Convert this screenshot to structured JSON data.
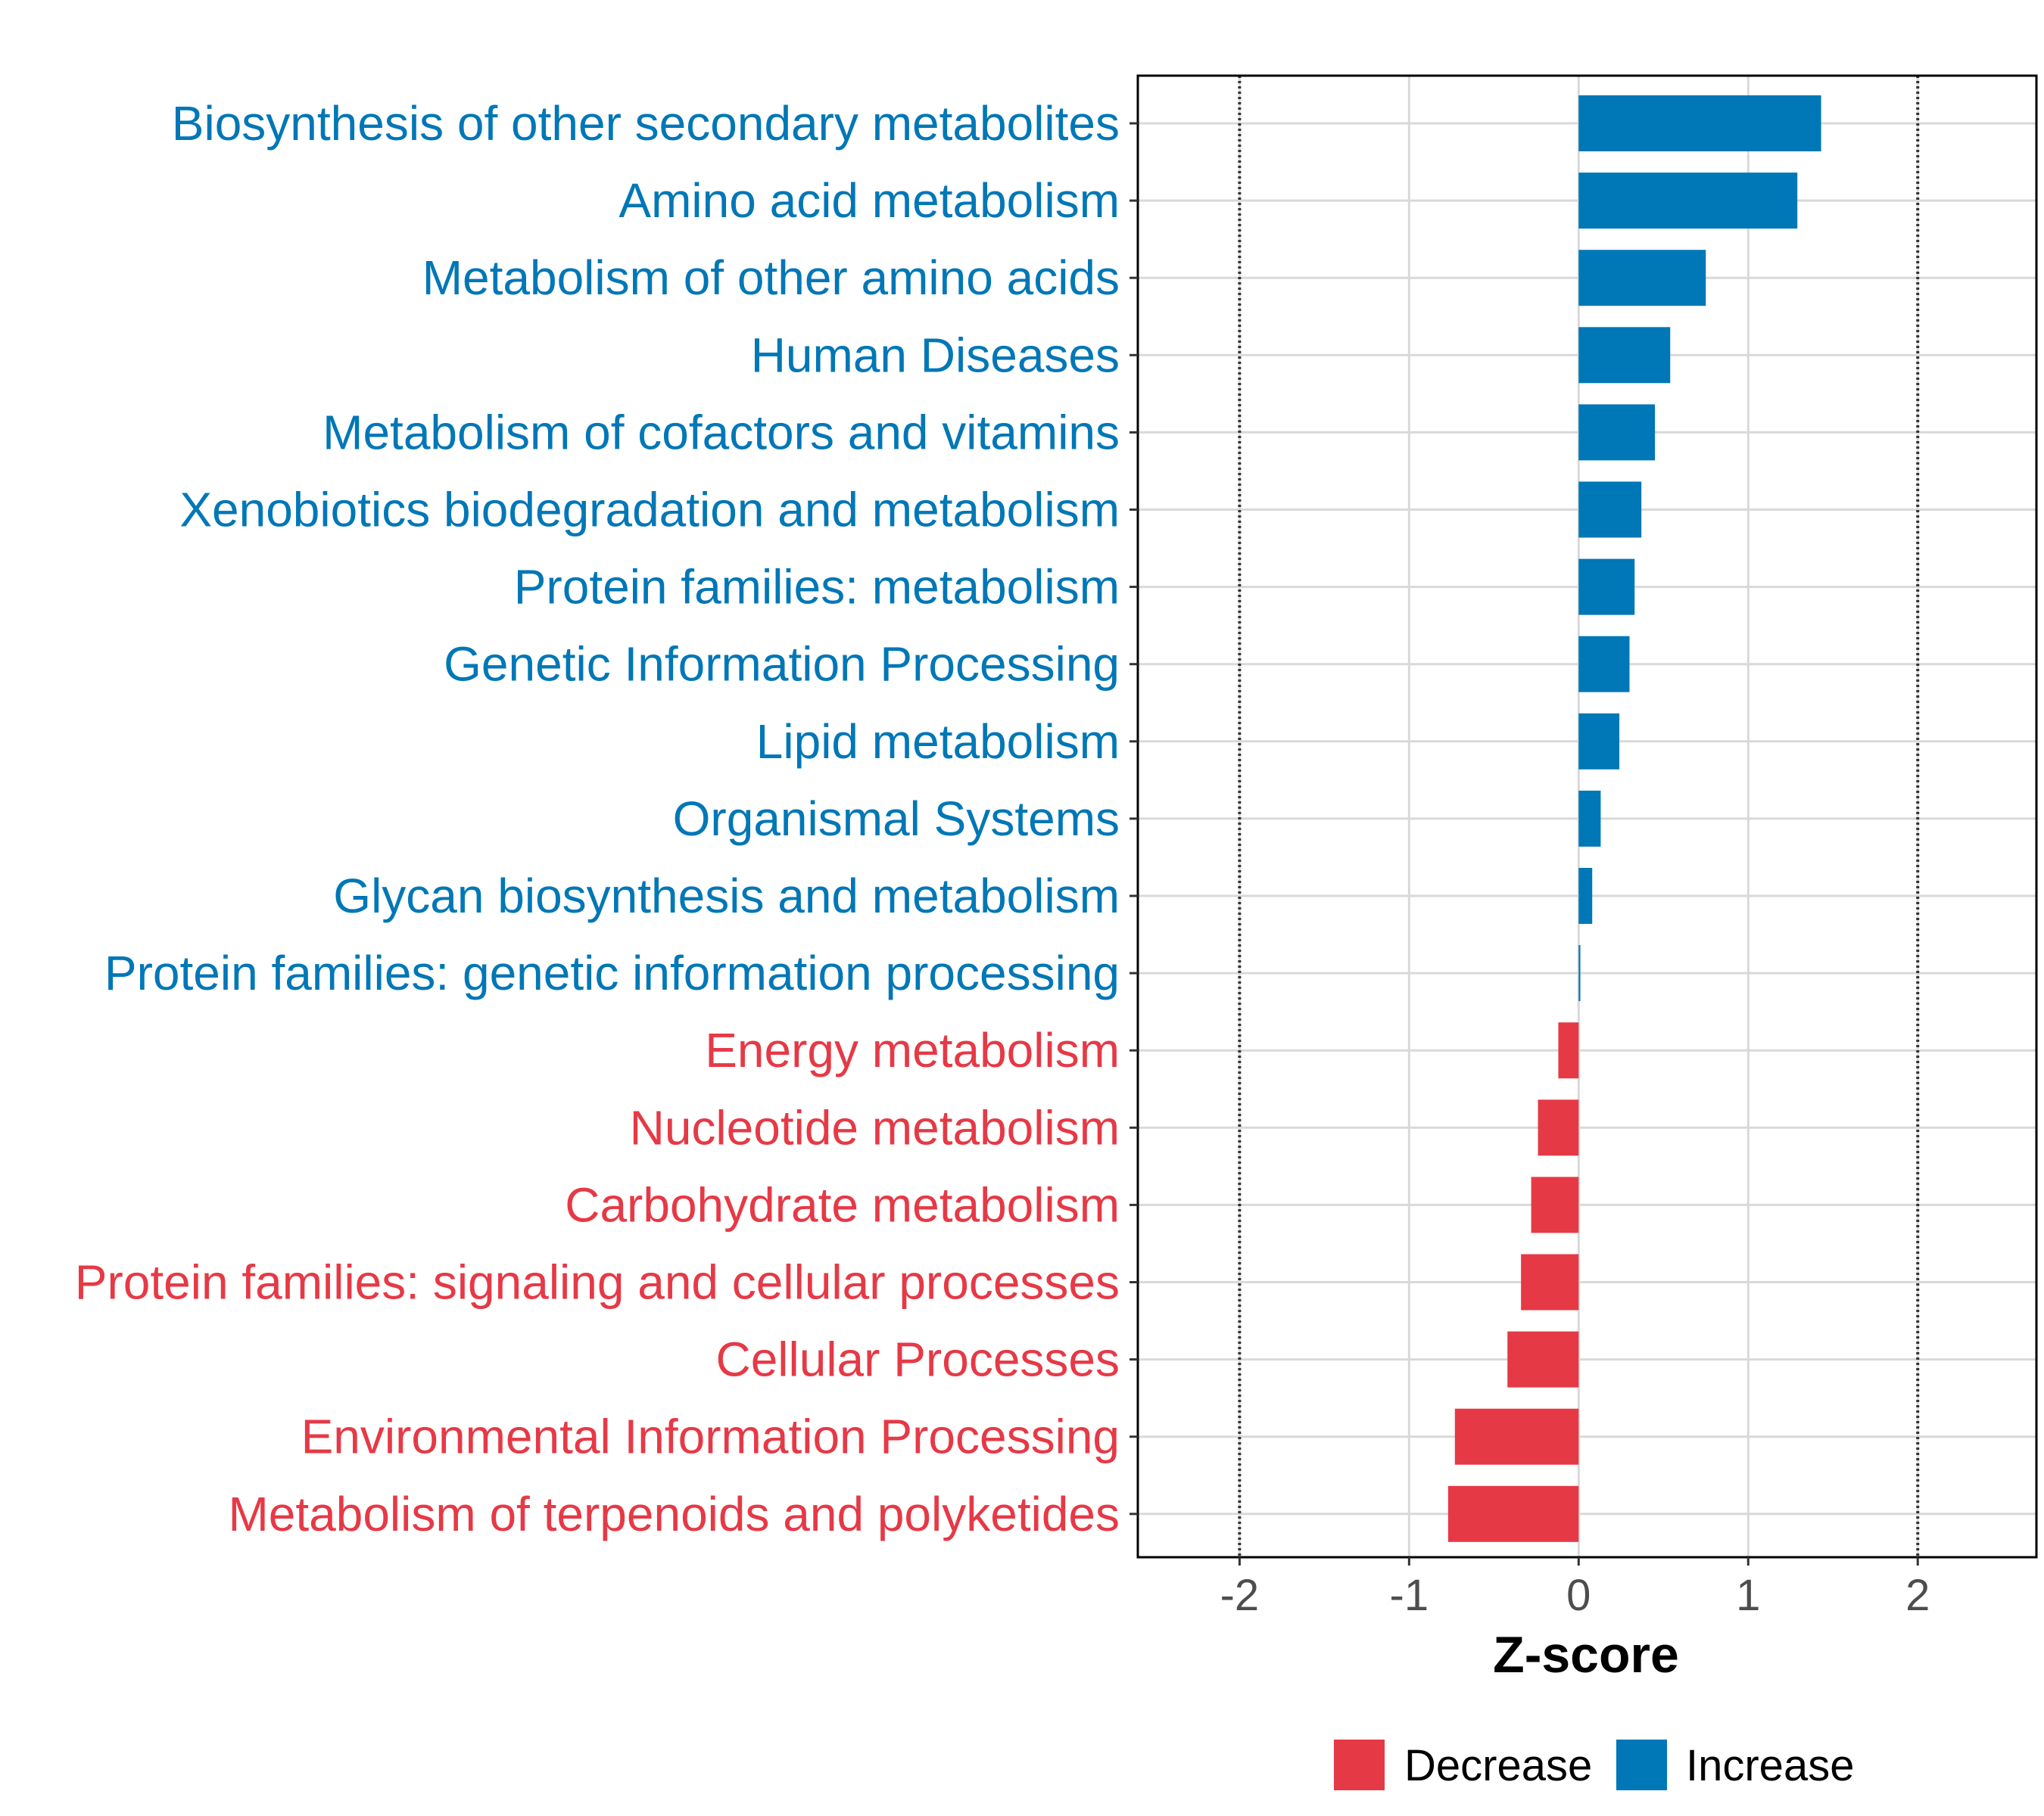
{
  "chart_data": {
    "type": "bar",
    "orientation": "horizontal",
    "title": "",
    "xlabel": "Z-score",
    "ylabel": "",
    "xlim": [
      -2.6,
      2.7
    ],
    "xticks": [
      -2,
      -1,
      0,
      1,
      2
    ],
    "reference_lines": [
      -2,
      2
    ],
    "grid": true,
    "legend_position": "bottom",
    "colors": {
      "Decrease": "#e63946",
      "Increase": "#0077b6"
    },
    "legend": [
      {
        "label": "Decrease",
        "color": "#e63946"
      },
      {
        "label": "Increase",
        "color": "#0077b6"
      }
    ],
    "categories": [
      "Biosynthesis of other secondary metabolites",
      "Amino acid metabolism",
      "Metabolism of other amino acids",
      "Human Diseases",
      "Metabolism of cofactors and vitamins",
      "Xenobiotics biodegradation and metabolism",
      "Protein families: metabolism",
      "Genetic Information Processing",
      "Lipid metabolism",
      "Organismal Systems",
      "Glycan biosynthesis and metabolism",
      "Protein families: genetic information processing",
      "Energy metabolism",
      "Nucleotide metabolism",
      "Carbohydrate metabolism",
      "Protein families: signaling and cellular processes",
      "Cellular Processes",
      "Environmental Information Processing",
      "Metabolism of terpenoids and polyketides"
    ],
    "values": [
      1.43,
      1.29,
      0.75,
      0.54,
      0.45,
      0.37,
      0.33,
      0.3,
      0.24,
      0.13,
      0.08,
      0.01,
      -0.12,
      -0.24,
      -0.28,
      -0.34,
      -0.42,
      -0.73,
      -0.77
    ],
    "groups": [
      "Increase",
      "Increase",
      "Increase",
      "Increase",
      "Increase",
      "Increase",
      "Increase",
      "Increase",
      "Increase",
      "Increase",
      "Increase",
      "Increase",
      "Decrease",
      "Decrease",
      "Decrease",
      "Decrease",
      "Decrease",
      "Decrease",
      "Decrease"
    ]
  }
}
